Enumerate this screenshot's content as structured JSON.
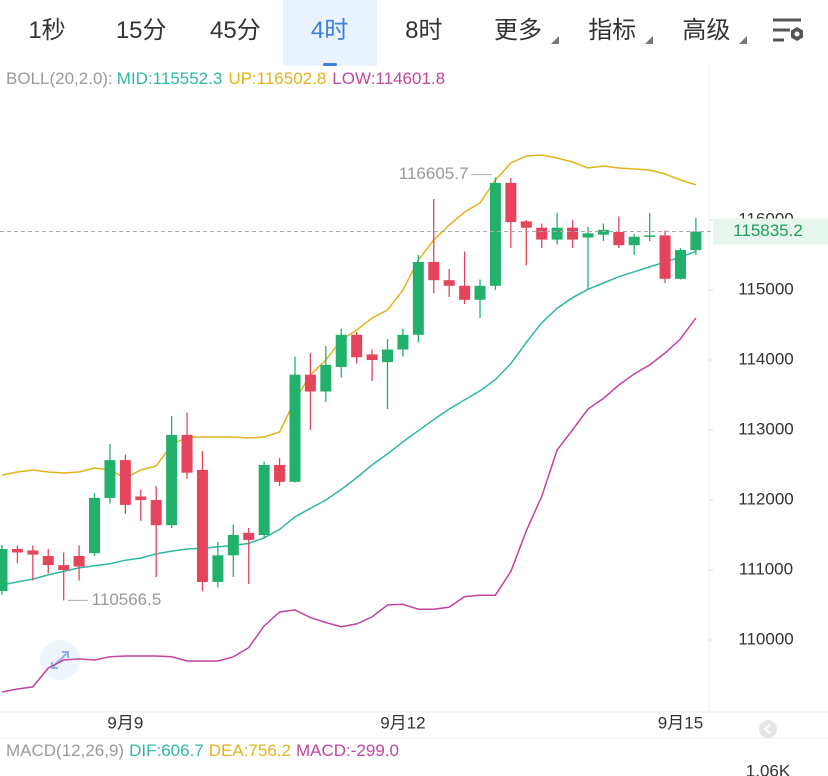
{
  "tabs": [
    "1秒",
    "15分",
    "45分",
    "4时",
    "8时",
    "更多",
    "指标",
    "高级"
  ],
  "active_tab": 3,
  "chart_data": {
    "type": "candlestick",
    "indicator": "BOLL(20,2.0):",
    "categories": [
      null,
      null,
      null,
      null,
      null,
      null,
      null,
      null,
      "9月9",
      null,
      null,
      null,
      null,
      null,
      null,
      null,
      null,
      null,
      null,
      null,
      null,
      null,
      null,
      null,
      null,
      null,
      "9月12",
      null,
      null,
      null,
      null,
      null,
      null,
      null,
      null,
      null,
      null,
      null,
      null,
      null,
      null,
      null,
      null,
      null,
      "9月15",
      null
    ],
    "open": [
      110700,
      111300,
      111280,
      111200,
      111070,
      111200,
      111240,
      112030,
      112570,
      112050,
      112000,
      111640,
      112930,
      112430,
      110830,
      111210,
      111530,
      111500,
      112500,
      112260,
      113790,
      113550,
      113900,
      114360,
      114080,
      113970,
      114150,
      114360,
      115400,
      115140,
      115060,
      114860,
      115060,
      116530,
      115980,
      115890,
      115720,
      115890,
      115750,
      115790,
      115830,
      115640,
      115760,
      115780,
      115160,
      115570
    ],
    "high": [
      111357,
      111350,
      111350,
      111300,
      111250,
      111350,
      112100,
      112800,
      112650,
      112150,
      112200,
      113200,
      113250,
      112700,
      111400,
      111650,
      111600,
      112550,
      112600,
      114050,
      114100,
      114200,
      114450,
      114400,
      114150,
      114300,
      114450,
      115500,
      116300,
      115300,
      115550,
      115150,
      116605.7,
      116600,
      116000,
      115950,
      116100,
      116000,
      115900,
      115950,
      116050,
      115800,
      116100,
      115850,
      115600,
      116030
    ],
    "low": [
      110643,
      111100,
      110850,
      110950,
      110566.5,
      110850,
      111200,
      111950,
      111800,
      111700,
      110900,
      111600,
      112300,
      110700,
      110750,
      110900,
      110800,
      111450,
      112200,
      112250,
      113000,
      113400,
      113750,
      113950,
      113700,
      113300,
      114050,
      114250,
      114950,
      114900,
      114800,
      114600,
      115000,
      115600,
      115350,
      115600,
      115650,
      115600,
      115000,
      115700,
      115600,
      115500,
      115700,
      115100,
      115150,
      115500
    ],
    "close": [
      111300,
      111250,
      111220,
      111070,
      111000,
      111050,
      112030,
      112570,
      111930,
      112000,
      111640,
      112930,
      112390,
      110830,
      111210,
      111500,
      111430,
      112500,
      112260,
      113790,
      113550,
      113930,
      114360,
      114040,
      114000,
      114150,
      114360,
      115400,
      115140,
      115060,
      114860,
      115060,
      116530,
      115970,
      115890,
      115720,
      115890,
      115720,
      115810,
      115860,
      115640,
      115760,
      115780,
      115160,
      115570,
      115835.2
    ],
    "up_color": "#22b16a",
    "down_color": "#e5455c",
    "series": [
      {
        "name": "MID:115552.3",
        "color": "#2fb8a3",
        "values": [
          110786,
          110830,
          110870,
          110930,
          110980,
          111030,
          111060,
          111090,
          111140,
          111170,
          111230,
          111270,
          111300,
          111310,
          111330,
          111350,
          111380,
          111460,
          111580,
          111760,
          111880,
          112000,
          112150,
          112320,
          112500,
          112660,
          112830,
          112990,
          113150,
          113300,
          113430,
          113560,
          113720,
          113950,
          114250,
          114530,
          114740,
          114890,
          115010,
          115100,
          115190,
          115260,
          115330,
          115400,
          115470,
          115552.3
        ]
      },
      {
        "name": "UP:116502.8",
        "color": "#e2b31c",
        "values": [
          112357,
          112400,
          112429,
          112400,
          112386,
          112400,
          112457,
          112429,
          112314,
          112429,
          112486,
          112786,
          112900,
          112900,
          112900,
          112900,
          112886,
          112900,
          112971,
          113429,
          113786,
          114000,
          114286,
          114429,
          114600,
          114714,
          115000,
          115429,
          115714,
          115929,
          116114,
          116243,
          116571,
          116814,
          116914,
          116929,
          116886,
          116829,
          116743,
          116771,
          116743,
          116729,
          116714,
          116657,
          116571,
          116502.8
        ]
      },
      {
        "name": "LOW:114601.8",
        "color": "#c4449d",
        "values": [
          109257,
          109300,
          109330,
          109600,
          109714,
          109730,
          109714,
          109760,
          109771,
          109771,
          109771,
          109760,
          109700,
          109700,
          109700,
          109760,
          109890,
          110200,
          110400,
          110430,
          110320,
          110250,
          110190,
          110230,
          110330,
          110500,
          110510,
          110440,
          110440,
          110470,
          110620,
          110640,
          110640,
          110980,
          111560,
          112050,
          112714,
          113000,
          113300,
          113450,
          113643,
          113800,
          113929,
          114100,
          114300,
          114601.8
        ]
      }
    ],
    "ylim": [
      109000,
      118200
    ],
    "yticks": [
      110000,
      111000,
      112000,
      113000,
      114000,
      115000,
      116000
    ],
    "annotations": {
      "high": 116605.7,
      "low": 110566.5,
      "last": 115835.2
    },
    "macd": {
      "title": "MACD(12,26,9)",
      "items": [
        {
          "text": "DIF:606.7",
          "color": "#2fb8a3"
        },
        {
          "text": "DEA:756.2",
          "color": "#e2b31c"
        },
        {
          "text": "MACD:-299.0",
          "color": "#c4449d"
        }
      ],
      "axis_label": "1.06K"
    }
  }
}
